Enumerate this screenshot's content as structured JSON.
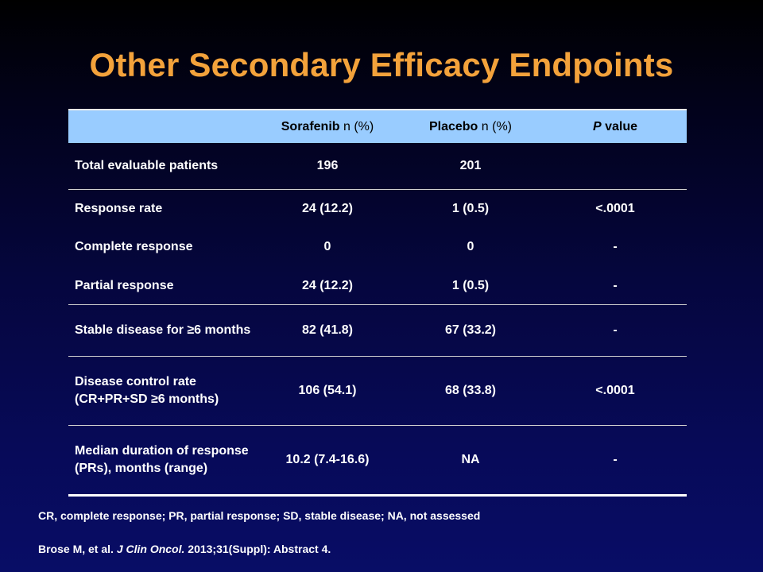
{
  "title": "Other Secondary Efficacy Endpoints",
  "table": {
    "headers": {
      "col1": "",
      "sorafenib": "Sorafenib",
      "sorafenib_unit": "n (%)",
      "placebo": "Placebo",
      "placebo_unit": "n (%)",
      "p_italic": "P",
      "p_rest": "value"
    },
    "rows": [
      {
        "label": "Total evaluable patients",
        "sorafenib": "196",
        "placebo": "201",
        "p": ""
      },
      {
        "label": "Response rate",
        "sorafenib": "24 (12.2)",
        "placebo": "1 (0.5)",
        "p": "<.0001"
      },
      {
        "label": "Complete response",
        "sorafenib": "0",
        "placebo": "0",
        "p": "-"
      },
      {
        "label": "Partial response",
        "sorafenib": "24 (12.2)",
        "placebo": "1 (0.5)",
        "p": "-"
      },
      {
        "label": "Stable disease for ≥6 months",
        "sorafenib": "82 (41.8)",
        "placebo": "67 (33.2)",
        "p": "-"
      },
      {
        "label": "Disease control rate (CR+PR+SD ≥6 months)",
        "sorafenib": "106 (54.1)",
        "placebo": "68 (33.8)",
        "p": "<.0001"
      },
      {
        "label": "Median duration of response (PRs), months (range)",
        "sorafenib": "10.2 (7.4-16.6)",
        "placebo": "NA",
        "p": "-"
      }
    ]
  },
  "footnote": "CR, complete response; PR, partial response; SD, stable disease; NA, not assessed",
  "reference": {
    "authors": "Brose M, et al.",
    "journal": "J Clin Oncol.",
    "details": "2013;31(Suppl): Abstract 4."
  }
}
